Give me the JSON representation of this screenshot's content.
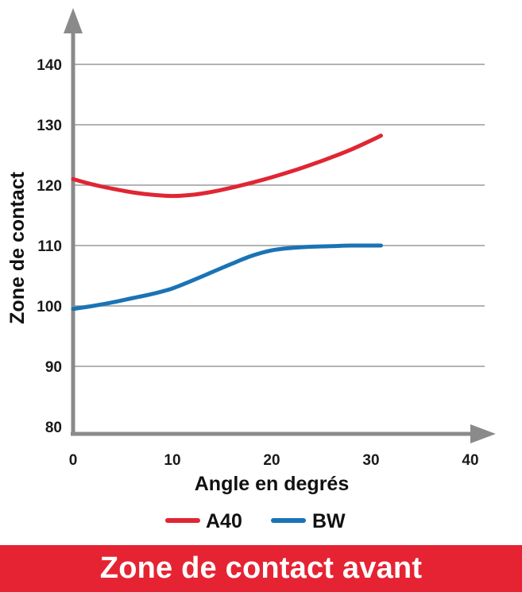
{
  "banner": {
    "title": "Zone de contact avant",
    "color": "#e62333"
  },
  "chart_data": {
    "type": "line",
    "xlabel": "Angle en degrés",
    "ylabel": "Zone de contact",
    "xlim": [
      0,
      40
    ],
    "ylim": [
      80,
      140
    ],
    "xticks": [
      0,
      10,
      20,
      30,
      40
    ],
    "yticks": [
      80,
      90,
      100,
      110,
      120,
      130,
      140
    ],
    "grid": true,
    "legend_position": "bottom",
    "axis_color": "#8a8a8a",
    "grid_color": "#9a9a9a",
    "series": [
      {
        "name": "A40",
        "color": "#e02633",
        "x": [
          0,
          2,
          4,
          6,
          8,
          10,
          12,
          14,
          16,
          18,
          20,
          22,
          24,
          26,
          28,
          30,
          31
        ],
        "y": [
          121,
          120.1,
          119.4,
          118.8,
          118.4,
          118.2,
          118.4,
          118.9,
          119.6,
          120.4,
          121.3,
          122.3,
          123.4,
          124.6,
          125.9,
          127.4,
          128.2
        ]
      },
      {
        "name": "BW",
        "color": "#1a73b5",
        "x": [
          0,
          2,
          4,
          6,
          8,
          10,
          12,
          14,
          16,
          18,
          20,
          22,
          24,
          26,
          28,
          30,
          31
        ],
        "y": [
          99.5,
          100,
          100.6,
          101.3,
          102,
          102.9,
          104.2,
          105.6,
          107,
          108.3,
          109.2,
          109.6,
          109.8,
          109.9,
          110,
          110,
          110
        ]
      }
    ]
  }
}
